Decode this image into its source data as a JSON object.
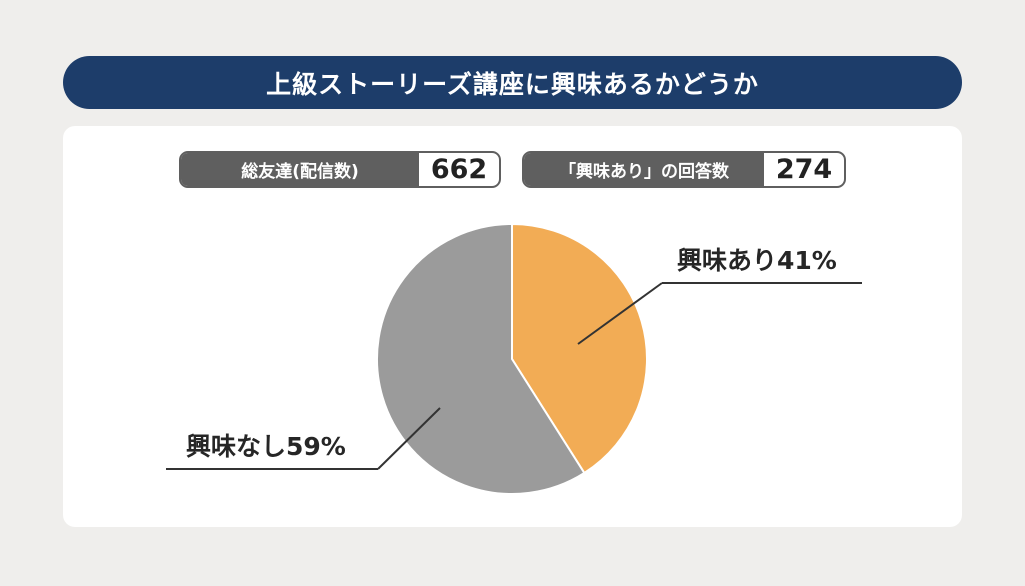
{
  "title": "上級ストーリーズ講座に興味あるかどうか",
  "stats": {
    "total_label": "総友達(配信数)",
    "total_value": "662",
    "interest_label": "「興味あり」の回答数",
    "interest_value": "274"
  },
  "colors": {
    "title_bg": "#1d3d6a",
    "interested": "#f2ac55",
    "not_interested": "#9b9b9b",
    "stat_label_bg": "#5f5f5f"
  },
  "chart_data": {
    "type": "pie",
    "title": "上級ストーリーズ講座に興味あるかどうか",
    "slices": [
      {
        "label": "興味あり41%",
        "value": 41,
        "color": "#f2ac55"
      },
      {
        "label": "興味なし59%",
        "value": 59,
        "color": "#9b9b9b"
      }
    ]
  }
}
